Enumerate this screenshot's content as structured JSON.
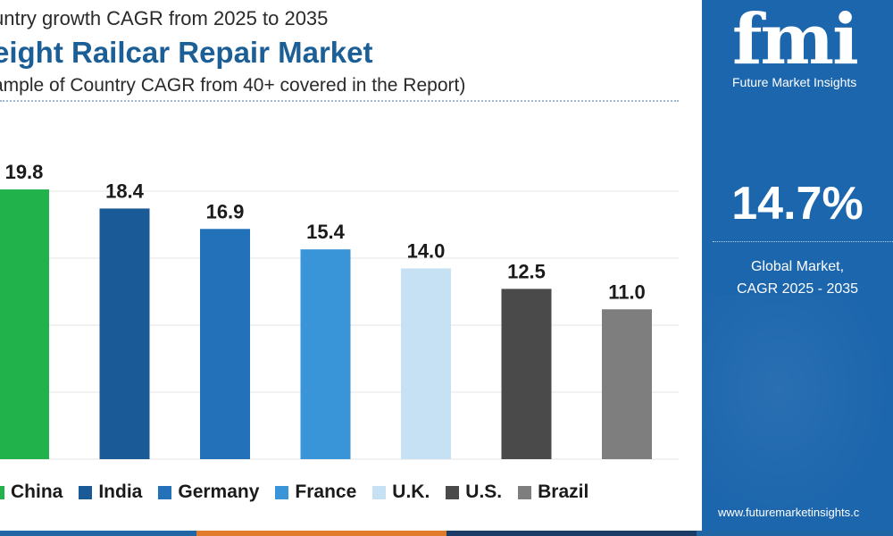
{
  "header": {
    "subtitle": "untry growth CAGR from 2025 to 2035",
    "title": "eight Railcar Repair Market",
    "note": "ample of Country CAGR from 40+ covered in the Report)"
  },
  "chart_data": {
    "type": "bar",
    "title": "eight Railcar Repair Market",
    "subtitle": "untry growth CAGR from 2025 to 2035",
    "categories": [
      "China",
      "India",
      "Germany",
      "France",
      "U.K.",
      "U.S.",
      "Brazil"
    ],
    "values": [
      19.8,
      18.4,
      16.9,
      15.4,
      14.0,
      12.5,
      11.0
    ],
    "value_labels": [
      "19.8",
      "18.4",
      "16.9",
      "15.4",
      "14.0",
      "12.5",
      "11.0"
    ],
    "colors": [
      "#21b24b",
      "#1a5a96",
      "#2371b8",
      "#3a94d8",
      "#c5e1f3",
      "#4a4a4a",
      "#7e7e7e"
    ],
    "ylim": [
      0,
      24
    ],
    "grid": true,
    "legend_position": "bottom"
  },
  "sidebar": {
    "logo_text": "fmi",
    "logo_name": "Future Market Insights",
    "value": "14.7%",
    "label_line1": "Global Market,",
    "label_line2": "CAGR 2025 - 2035",
    "url": "www.futuremarketinsights.c"
  }
}
